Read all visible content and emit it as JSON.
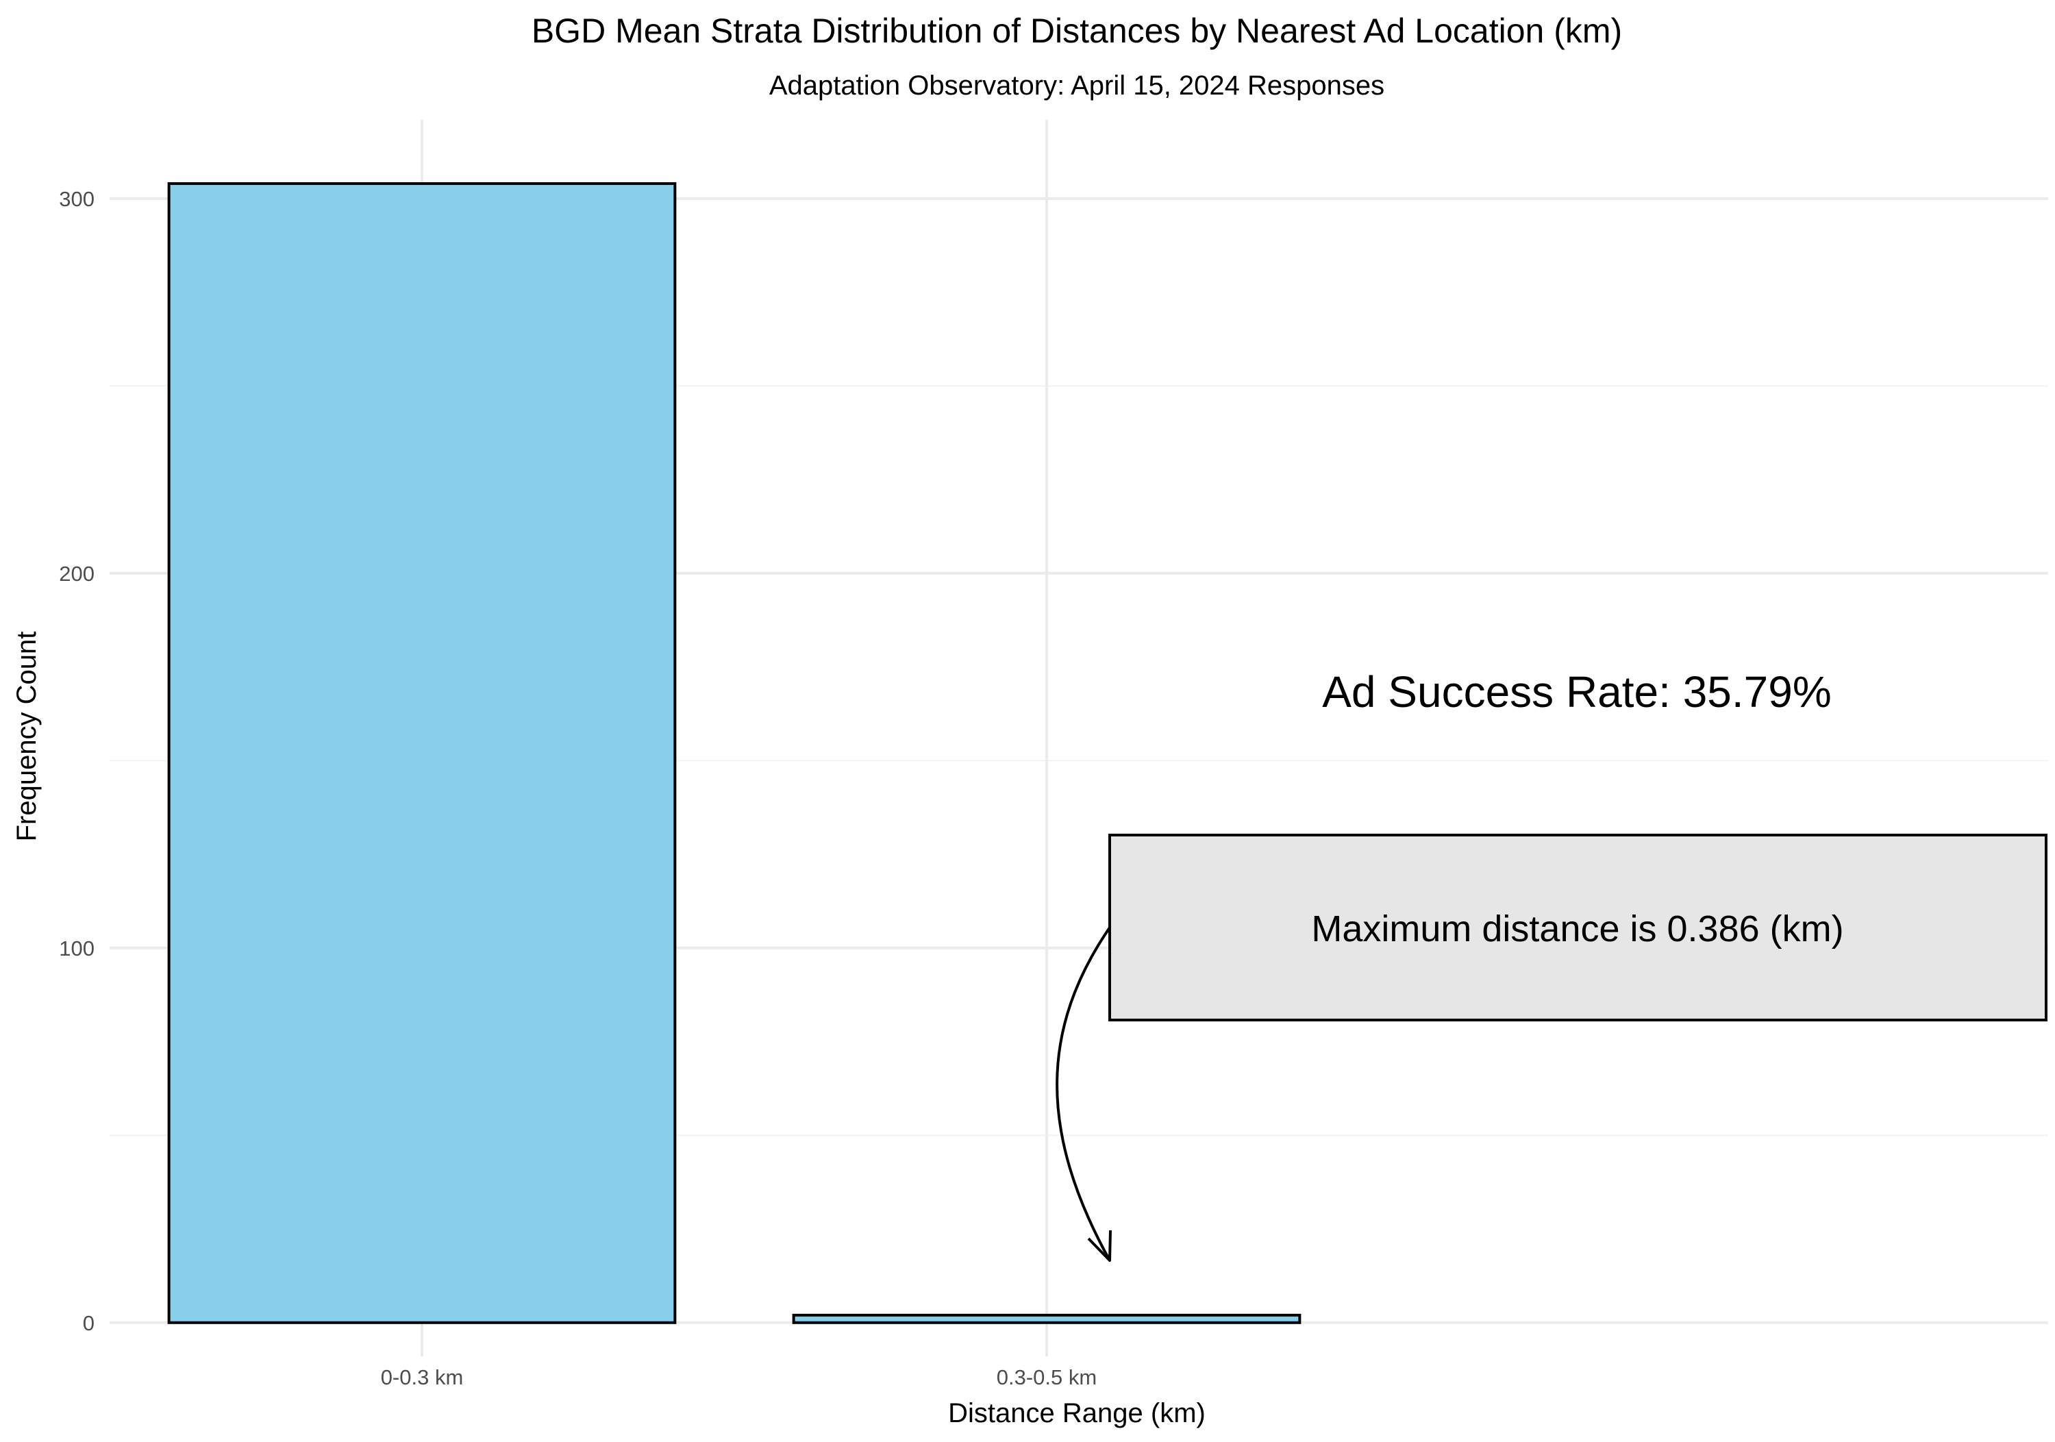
{
  "chart_data": {
    "type": "bar",
    "title": "BGD Mean Strata Distribution of Distances by Nearest Ad Location (km)",
    "subtitle": "Adaptation Observatory: April 15, 2024 Responses",
    "xlabel": "Distance Range (km)",
    "ylabel": "Frequency Count",
    "categories": [
      "0-0.3 km",
      "0.3-0.5 km"
    ],
    "values": [
      304,
      2
    ],
    "ylim": [
      -9,
      321
    ],
    "y_ticks": [
      0,
      100,
      200,
      300
    ],
    "grid": true,
    "legend": "none",
    "annotations": [
      {
        "text": "Ad Success Rate: 35.79%"
      },
      {
        "text": "Maximum distance is 0.386 (km)"
      }
    ],
    "colors": {
      "bar_fill": "#87CEEB",
      "bar_outline": "#000000",
      "grid_major": "#ebebeb",
      "grid_minor": "#f3f3f3",
      "annotation_box_fill": "#e6e6e6",
      "tick_text": "#4d4d4d"
    }
  }
}
